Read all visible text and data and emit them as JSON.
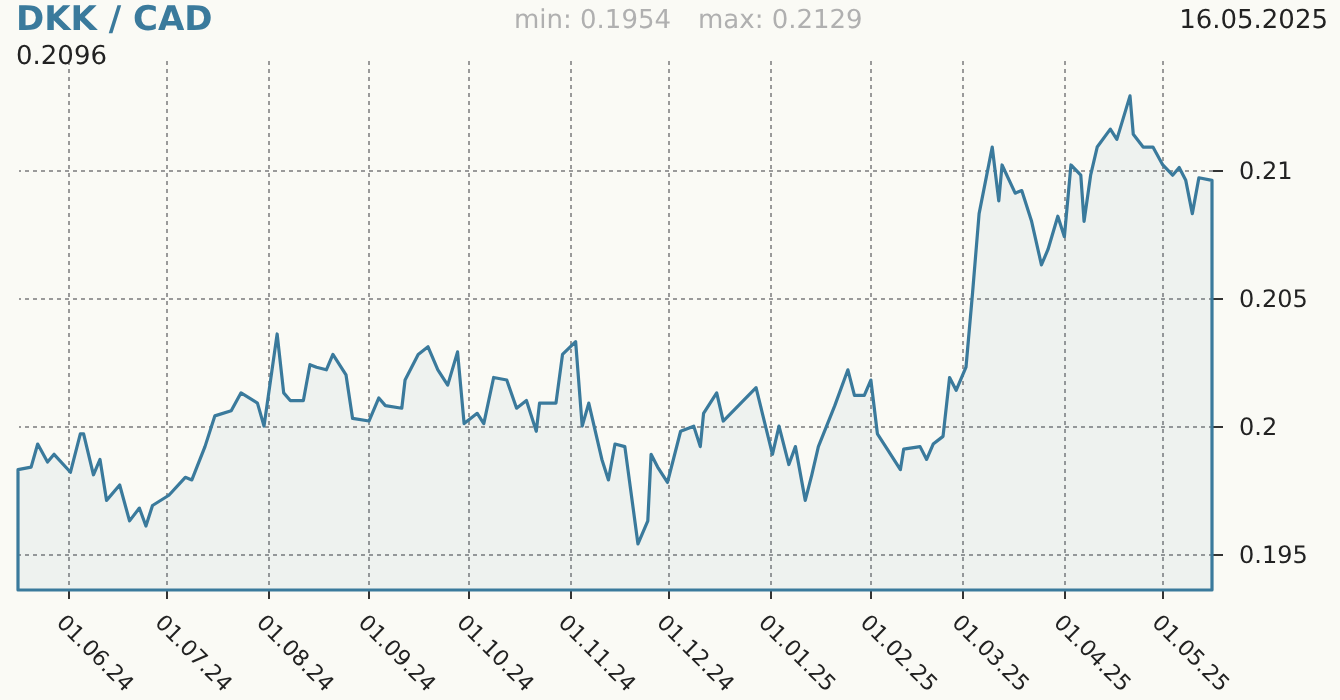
{
  "chart_data": {
    "type": "area",
    "title": "DKK / CAD",
    "annotations": [
      "0.2096",
      "min: 0.1954",
      "max: 0.2129",
      "16.05.2025"
    ],
    "x": [
      "2024-05-17",
      "2024-05-21",
      "2024-05-23",
      "2024-05-26",
      "2024-05-28",
      "2024-06-02",
      "2024-06-05",
      "2024-06-06",
      "2024-06-09",
      "2024-06-11",
      "2024-06-13",
      "2024-06-17",
      "2024-06-20",
      "2024-06-23",
      "2024-06-25",
      "2024-06-27",
      "2024-07-02",
      "2024-07-07",
      "2024-07-09",
      "2024-07-13",
      "2024-07-16",
      "2024-07-21",
      "2024-07-24",
      "2024-07-29",
      "2024-07-31",
      "2024-08-04",
      "2024-08-06",
      "2024-08-08",
      "2024-08-12",
      "2024-08-14",
      "2024-08-16",
      "2024-08-19",
      "2024-08-21",
      "2024-08-25",
      "2024-08-27",
      "2024-09-01",
      "2024-09-04",
      "2024-09-06",
      "2024-09-11",
      "2024-09-12",
      "2024-09-16",
      "2024-09-19",
      "2024-09-22",
      "2024-09-25",
      "2024-09-28",
      "2024-09-30",
      "2024-10-04",
      "2024-10-06",
      "2024-10-09",
      "2024-10-13",
      "2024-10-16",
      "2024-10-19",
      "2024-10-22",
      "2024-10-23",
      "2024-10-28",
      "2024-10-30",
      "2024-11-03",
      "2024-11-05",
      "2024-11-07",
      "2024-11-11",
      "2024-11-13",
      "2024-11-15",
      "2024-11-18",
      "2024-11-22",
      "2024-11-25",
      "2024-11-26",
      "2024-11-28",
      "2024-12-01",
      "2024-12-05",
      "2024-12-09",
      "2024-12-11",
      "2024-12-12",
      "2024-12-16",
      "2024-12-18",
      "2024-12-28",
      "2025-01-02",
      "2025-01-04",
      "2025-01-07",
      "2025-01-09",
      "2025-01-12",
      "2025-01-14",
      "2025-01-16",
      "2025-01-21",
      "2025-01-25",
      "2025-01-27",
      "2025-01-30",
      "2025-02-01",
      "2025-02-03",
      "2025-02-06",
      "2025-02-10",
      "2025-02-11",
      "2025-02-16",
      "2025-02-18",
      "2025-02-20",
      "2025-02-23",
      "2025-02-25",
      "2025-02-27",
      "2025-03-02",
      "2025-03-04",
      "2025-03-06",
      "2025-03-08",
      "2025-03-10",
      "2025-03-12",
      "2025-03-13",
      "2025-03-17",
      "2025-03-19",
      "2025-03-22",
      "2025-03-25",
      "2025-03-27",
      "2025-03-30",
      "2025-04-01",
      "2025-04-03",
      "2025-04-06",
      "2025-04-07",
      "2025-04-09",
      "2025-04-11",
      "2025-04-15",
      "2025-04-17",
      "2025-04-21",
      "2025-04-22",
      "2025-04-25",
      "2025-04-28",
      "2025-05-01",
      "2025-05-04",
      "2025-05-06",
      "2025-05-08",
      "2025-05-10",
      "2025-05-12",
      "2025-05-16"
    ],
    "series": [
      {
        "color": "#3a7a9c",
        "values": [
          0.1983,
          0.1984,
          0.1993,
          0.1986,
          0.1989,
          0.1982,
          0.1997,
          0.1997,
          0.1981,
          0.1987,
          0.1971,
          0.1977,
          0.1963,
          0.1968,
          0.1961,
          0.1969,
          0.1973,
          0.198,
          0.1979,
          0.1992,
          0.2004,
          0.2006,
          0.2013,
          0.2009,
          0.2,
          0.2036,
          0.2013,
          0.201,
          0.201,
          0.2024,
          0.2023,
          0.2022,
          0.2028,
          0.202,
          0.2003,
          0.2002,
          0.2011,
          0.2008,
          0.2007,
          0.2018,
          0.2028,
          0.2031,
          0.2022,
          0.2016,
          0.2029,
          0.2001,
          0.2005,
          0.2001,
          0.2019,
          0.2018,
          0.2007,
          0.201,
          0.1998,
          0.2009,
          0.2009,
          0.2028,
          0.2033,
          0.2,
          0.2009,
          0.1987,
          0.1979,
          0.1993,
          0.1992,
          0.1954,
          0.1963,
          0.1989,
          0.1984,
          0.1978,
          0.1998,
          0.2,
          0.1992,
          0.2005,
          0.2013,
          0.2002,
          0.2015,
          0.1989,
          0.2,
          0.1985,
          0.1992,
          0.1971,
          0.1981,
          0.1992,
          0.2008,
          0.2022,
          0.2012,
          0.2012,
          0.2018,
          0.1997,
          0.1991,
          0.1983,
          0.1991,
          0.1992,
          0.1987,
          0.1993,
          0.1996,
          0.2019,
          0.2014,
          0.2023,
          0.2052,
          0.2083,
          0.2096,
          0.2109,
          0.2088,
          0.2102,
          0.2091,
          0.2092,
          0.208,
          0.2063,
          0.2069,
          0.2082,
          0.2074,
          0.2102,
          0.2098,
          0.208,
          0.2098,
          0.2109,
          0.2116,
          0.2112,
          0.2129,
          0.2114,
          0.2109,
          0.2109,
          0.2102,
          0.2098,
          0.2101,
          0.2096,
          0.2083,
          0.2097,
          0.2096
        ]
      }
    ],
    "xlim": [
      "2024-05-17",
      "2025-05-16"
    ],
    "xticks": [
      {
        "value": "2024-06-01",
        "label": "01.06.24"
      },
      {
        "value": "2024-07-01",
        "label": "01.07.24"
      },
      {
        "value": "2024-08-01",
        "label": "01.08.24"
      },
      {
        "value": "2024-09-01",
        "label": "01.09.24"
      },
      {
        "value": "2024-10-01",
        "label": "01.10.24"
      },
      {
        "value": "2024-11-01",
        "label": "01.11.24"
      },
      {
        "value": "2024-12-01",
        "label": "01.12.24"
      },
      {
        "value": "2025-01-01",
        "label": "01.01.25"
      },
      {
        "value": "2025-02-01",
        "label": "01.02.25"
      },
      {
        "value": "2025-03-01",
        "label": "01.03.25"
      },
      {
        "value": "2025-04-01",
        "label": "01.04.25"
      },
      {
        "value": "2025-05-01",
        "label": "01.05.25"
      }
    ],
    "ylim": [
      0.1936,
      0.2143
    ],
    "yticks": [
      0.195,
      0.2,
      0.205,
      0.21
    ],
    "grid": true,
    "line_style": "solid"
  }
}
